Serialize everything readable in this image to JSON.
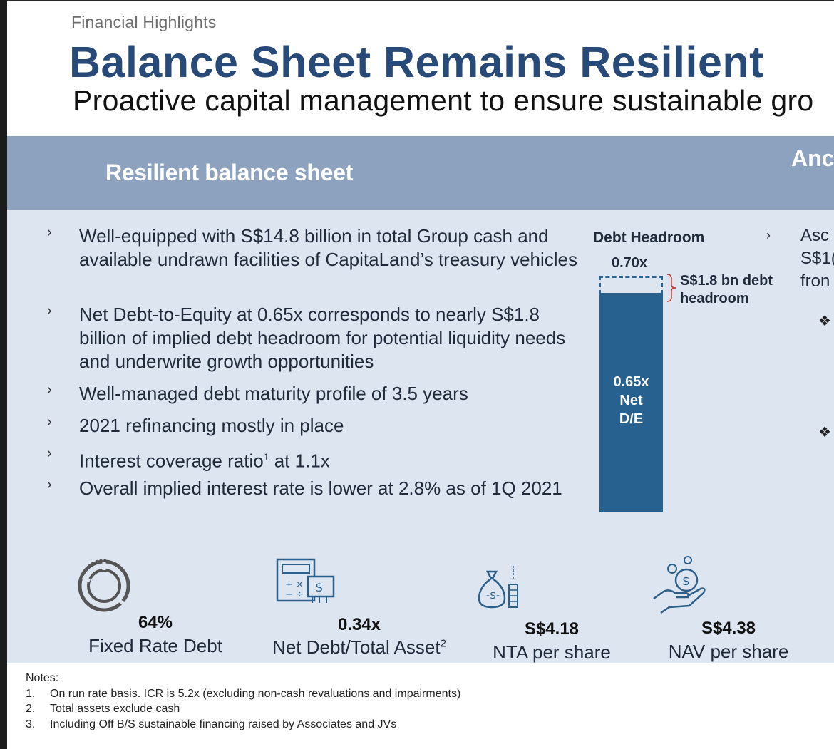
{
  "header": {
    "section": "Financial Highlights",
    "title": "Balance Sheet Remains Resilient",
    "subtitle": "Proactive capital management to ensure sustainable gro"
  },
  "band": {
    "left_heading": "Resilient balance sheet",
    "right_heading": "Anc"
  },
  "bullets": [
    {
      "marker": "›",
      "text": "Well-equipped with S$14.8 billion in total Group cash and available undrawn facilities of CapitaLand’s treasury vehicles"
    },
    {
      "marker": "›",
      "text": "Net Debt-to-Equity at 0.65x corresponds to nearly S$1.8 billion of implied debt headroom for potential liquidity needs and underwrite growth opportunities"
    },
    {
      "marker": "›",
      "text": "Well-managed debt maturity profile of 3.5 years"
    },
    {
      "marker": "›",
      "text": "2021 refinancing mostly in place"
    },
    {
      "marker": "›",
      "text_before": "Interest coverage ratio",
      "sup": "1",
      "text_after": " at 1.1x"
    },
    {
      "marker": "›",
      "text": "Overall implied interest rate is lower at 2.8% as of 1Q 2021"
    }
  ],
  "debt_chart": {
    "title": "Debt Headroom",
    "ceiling_label": "0.70x",
    "bar_line1": "0.65x",
    "bar_line2": "Net",
    "bar_line3": "D/E",
    "headroom_line1": "S$1.8 bn debt",
    "headroom_line2": "headroom",
    "current_ratio": 0.65,
    "ceiling_ratio": 0.7,
    "colors": {
      "bar": "#27618f",
      "dashed": "#2c6390"
    }
  },
  "right_column": {
    "marker": "›",
    "lines": [
      "Asc",
      "S$1(",
      "fron"
    ],
    "diamond": "❖"
  },
  "stats": [
    {
      "value": "64%",
      "label": "Fixed Rate Debt",
      "icon": "pie-chart-icon"
    },
    {
      "value": "0.34x",
      "label": "Net Debt/Total Asset",
      "sup": "2",
      "icon": "calculator-icon"
    },
    {
      "value": "S$4.18",
      "label": "NTA per share",
      "icon": "money-bag-icon"
    },
    {
      "value": "S$4.38",
      "label": "NAV per share",
      "icon": "hand-coin-icon"
    }
  ],
  "notes": {
    "title": "Notes:",
    "items": [
      {
        "num": "1.",
        "text": "On run rate basis. ICR is 5.2x (excluding non-cash revaluations and impairments)"
      },
      {
        "num": "2.",
        "text": "Total assets exclude cash"
      },
      {
        "num": "3.",
        "text": "Including Off B/S sustainable financing raised by Associates and JVs"
      }
    ]
  }
}
